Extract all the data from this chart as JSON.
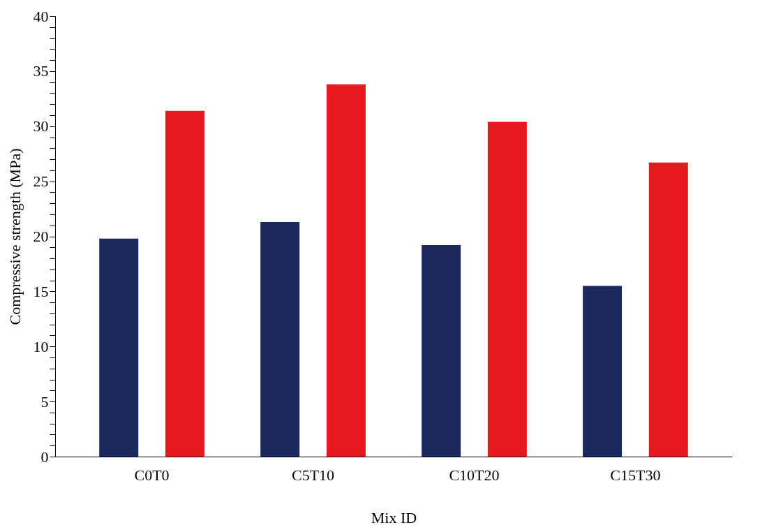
{
  "chart_data": {
    "type": "bar",
    "xlabel": "Mix ID",
    "ylabel": "Compressive strength (MPa)",
    "categories": [
      "C0T0",
      "C5T10",
      "C10T20",
      "C15T30"
    ],
    "series": [
      {
        "color": "#1b2a5e",
        "values": [
          19.8,
          21.3,
          19.2,
          15.5
        ]
      },
      {
        "color": "#e8191e",
        "values": [
          31.4,
          33.8,
          30.4,
          26.7
        ]
      }
    ],
    "ylim": [
      0,
      40
    ],
    "yticks": [
      0,
      {
        "value": 1,
        "label": null
      },
      {
        "value": 2,
        "label": null
      },
      {
        "value": 3,
        "label": null
      },
      {
        "value": 4,
        "label": null
      },
      5,
      {
        "value": 6,
        "label": null
      },
      {
        "value": 7,
        "label": null
      },
      {
        "value": 8,
        "label": null
      },
      {
        "value": 9,
        "label": null
      },
      10,
      {
        "value": 11,
        "label": null
      },
      {
        "value": 12,
        "label": null
      },
      {
        "value": 13,
        "label": null
      },
      {
        "value": 14,
        "label": null
      },
      15,
      {
        "value": 16,
        "label": null
      },
      {
        "value": 17,
        "label": null
      },
      {
        "value": 18,
        "label": null
      },
      {
        "value": 19,
        "label": null
      },
      20,
      {
        "value": 21,
        "label": null
      },
      {
        "value": 22,
        "label": null
      },
      {
        "value": 23,
        "label": null
      },
      {
        "value": 24,
        "label": null
      },
      25,
      {
        "value": 26,
        "label": null
      },
      {
        "value": 27,
        "label": null
      },
      {
        "value": 28,
        "label": null
      },
      {
        "value": 29,
        "label": null
      },
      30,
      {
        "value": 31,
        "label": null
      },
      {
        "value": 32,
        "label": null
      },
      {
        "value": 33,
        "label": null
      },
      {
        "value": 34,
        "label": null
      },
      35,
      {
        "value": 36,
        "label": null
      },
      {
        "value": 37,
        "label": null
      },
      {
        "value": 38,
        "label": null
      },
      {
        "value": 39,
        "label": null
      },
      40
    ],
    "grid": false,
    "legend": false
  }
}
